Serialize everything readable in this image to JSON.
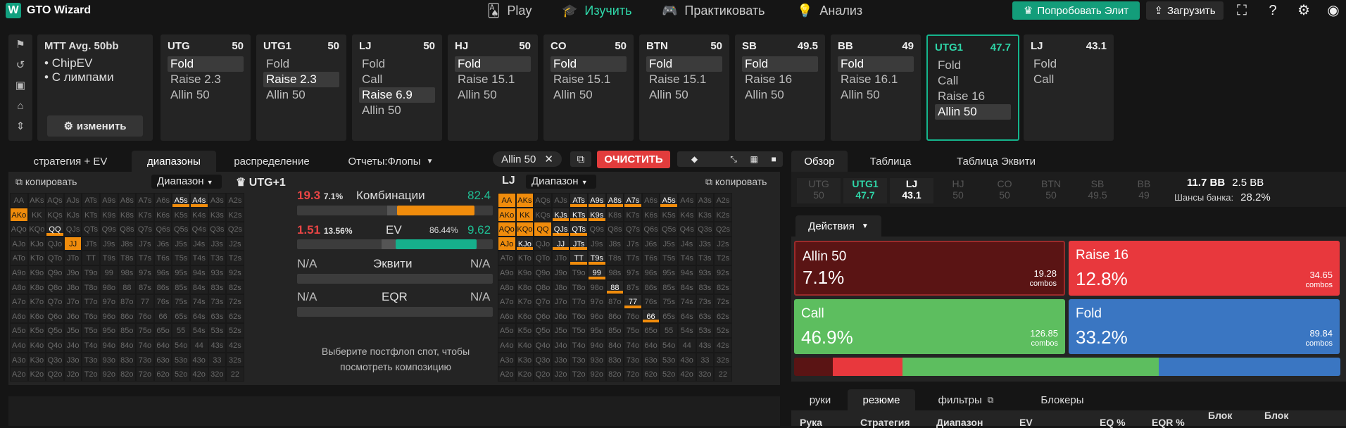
{
  "app": {
    "name": "GTO Wizard",
    "logo": "W"
  },
  "nav": [
    {
      "label": "Play",
      "icon": "cards-icon"
    },
    {
      "label": "Изучить",
      "icon": "graduation-icon"
    },
    {
      "label": "Практиковать",
      "icon": "gamepad-icon"
    },
    {
      "label": "Анализ",
      "icon": "bulb-icon"
    }
  ],
  "top": {
    "elite": "Попробовать Элит",
    "upload": "Загрузить"
  },
  "info": {
    "title": "MTT  Avg. 50bb",
    "line1": "ChipEV",
    "line2": "С лимпами",
    "edit": "изменить"
  },
  "positions": [
    {
      "pos": "UTG",
      "stack": "50",
      "actions": [
        "Fold",
        "Raise 2.3",
        "Allin 50"
      ],
      "sel": 0
    },
    {
      "pos": "UTG1",
      "stack": "50",
      "actions": [
        "Fold",
        "Raise 2.3",
        "Allin 50"
      ],
      "sel": 1
    },
    {
      "pos": "LJ",
      "stack": "50",
      "actions": [
        "Fold",
        "Call",
        "Raise 6.9",
        "Allin 50"
      ],
      "sel": 2
    },
    {
      "pos": "HJ",
      "stack": "50",
      "actions": [
        "Fold",
        "Raise 15.1",
        "Allin 50"
      ],
      "sel": 0
    },
    {
      "pos": "CO",
      "stack": "50",
      "actions": [
        "Fold",
        "Raise 15.1",
        "Allin 50"
      ],
      "sel": 0
    },
    {
      "pos": "BTN",
      "stack": "50",
      "actions": [
        "Fold",
        "Raise 15.1",
        "Allin 50"
      ],
      "sel": 0
    },
    {
      "pos": "SB",
      "stack": "49.5",
      "actions": [
        "Fold",
        "Raise 16",
        "Allin 50"
      ],
      "sel": 0
    },
    {
      "pos": "BB",
      "stack": "49",
      "actions": [
        "Fold",
        "Raise 16.1",
        "Allin 50"
      ],
      "sel": 0
    },
    {
      "pos": "UTG1",
      "stack": "47.7",
      "actions": [
        "Fold",
        "Call",
        "Raise 16",
        "Allin 50"
      ],
      "sel": 3
    },
    {
      "pos": "LJ",
      "stack": "43.1",
      "actions": [
        "Fold",
        "Call"
      ],
      "sel": -1
    }
  ],
  "tabs": [
    "стратегия + EV",
    "диапазоны",
    "распределение",
    "Отчеты:Флопы"
  ],
  "controls": {
    "chip": "Allin 50",
    "clear": "ОЧИСТИТЬ"
  },
  "left": {
    "copy": "копировать",
    "range": "Диапазон",
    "player": "UTG+1"
  },
  "mid": {
    "combos_l": "19.3",
    "combos_lp": "7.1%",
    "combos_t": "Комбинации",
    "combos_r": "82.4",
    "ev_l": "1.51",
    "ev_lp": "13.56%",
    "ev_t": "EV",
    "ev_rp": "86.44%",
    "ev_r": "9.62",
    "eq_l": "N/A",
    "eq_t": "Эквити",
    "eq_r": "N/A",
    "eqr_l": "N/A",
    "eqr_t": "EQR",
    "eqr_r": "N/A",
    "hint": "Выберите постфлоп спот, чтобы посмотреть композицию"
  },
  "right": {
    "player": "LJ",
    "range": "Диапазон",
    "copy": "копировать"
  },
  "hands": [
    [
      "AA",
      "AKs",
      "AQs",
      "AJs",
      "ATs",
      "A9s",
      "A8s",
      "A7s",
      "A6s",
      "A5s",
      "A4s",
      "A3s",
      "A2s"
    ],
    [
      "AKo",
      "KK",
      "KQs",
      "KJs",
      "KTs",
      "K9s",
      "K8s",
      "K7s",
      "K6s",
      "K5s",
      "K4s",
      "K3s",
      "K2s"
    ],
    [
      "AQo",
      "KQo",
      "QQ",
      "QJs",
      "QTs",
      "Q9s",
      "Q8s",
      "Q7s",
      "Q6s",
      "Q5s",
      "Q4s",
      "Q3s",
      "Q2s"
    ],
    [
      "AJo",
      "KJo",
      "QJo",
      "JJ",
      "JTs",
      "J9s",
      "J8s",
      "J7s",
      "J6s",
      "J5s",
      "J4s",
      "J3s",
      "J2s"
    ],
    [
      "ATo",
      "KTo",
      "QTo",
      "JTo",
      "TT",
      "T9s",
      "T8s",
      "T7s",
      "T6s",
      "T5s",
      "T4s",
      "T3s",
      "T2s"
    ],
    [
      "A9o",
      "K9o",
      "Q9o",
      "J9o",
      "T9o",
      "99",
      "98s",
      "97s",
      "96s",
      "95s",
      "94s",
      "93s",
      "92s"
    ],
    [
      "A8o",
      "K8o",
      "Q8o",
      "J8o",
      "T8o",
      "98o",
      "88",
      "87s",
      "86s",
      "85s",
      "84s",
      "83s",
      "82s"
    ],
    [
      "A7o",
      "K7o",
      "Q7o",
      "J7o",
      "T7o",
      "97o",
      "87o",
      "77",
      "76s",
      "75s",
      "74s",
      "73s",
      "72s"
    ],
    [
      "A6o",
      "K6o",
      "Q6o",
      "J6o",
      "T6o",
      "96o",
      "86o",
      "76o",
      "66",
      "65s",
      "64s",
      "63s",
      "62s"
    ],
    [
      "A5o",
      "K5o",
      "Q5o",
      "J5o",
      "T5o",
      "95o",
      "85o",
      "75o",
      "65o",
      "55",
      "54s",
      "53s",
      "52s"
    ],
    [
      "A4o",
      "K4o",
      "Q4o",
      "J4o",
      "T4o",
      "94o",
      "84o",
      "74o",
      "64o",
      "54o",
      "44",
      "43s",
      "42s"
    ],
    [
      "A3o",
      "K3o",
      "Q3o",
      "J3o",
      "T3o",
      "93o",
      "83o",
      "73o",
      "63o",
      "53o",
      "43o",
      "33",
      "32s"
    ],
    [
      "A2o",
      "K2o",
      "Q2o",
      "J2o",
      "T2o",
      "92o",
      "82o",
      "72o",
      "62o",
      "52o",
      "42o",
      "32o",
      "22"
    ]
  ],
  "leftHighlights": {
    "full": [
      "AKo",
      "JJ"
    ],
    "partial": [
      "A5s",
      "A4s",
      "QQ"
    ]
  },
  "rightHighlights": {
    "full": [
      "AA",
      "AKs",
      "AKo",
      "KK",
      "AQo",
      "KQo",
      "QQ",
      "AJo"
    ],
    "partial": [
      "KJs",
      "QJs",
      "KTs",
      "QTs",
      "K9s",
      "ATs",
      "A9s",
      "A8s",
      "A7s",
      "A5s",
      "JJ",
      "JTs",
      "TT",
      "T9s",
      "99",
      "88",
      "77",
      "66",
      "KJo"
    ]
  },
  "rtabs": [
    "Обзор",
    "Таблица",
    "Таблица Эквити"
  ],
  "mini": [
    {
      "pos": "UTG",
      "stack": "50"
    },
    {
      "pos": "UTG1",
      "stack": "47.7"
    },
    {
      "pos": "LJ",
      "stack": "43.1"
    },
    {
      "pos": "HJ",
      "stack": "50"
    },
    {
      "pos": "CO",
      "stack": "50"
    },
    {
      "pos": "BTN",
      "stack": "50"
    },
    {
      "pos": "SB",
      "stack": "49.5"
    },
    {
      "pos": "BB",
      "stack": "49"
    }
  ],
  "pot": {
    "a": "11.7 BB",
    "b": "2.5 BB",
    "label": "Шансы банка:",
    "val": "28.2%"
  },
  "actions_label": "Действия",
  "boxes": [
    {
      "name": "Allin 50",
      "pct": "7.1%",
      "combos": "19.28",
      "unit": "combos",
      "color": "#5a1414"
    },
    {
      "name": "Raise 16",
      "pct": "12.8%",
      "combos": "34.65",
      "unit": "combos",
      "color": "#e8383d"
    },
    {
      "name": "Call",
      "pct": "46.9%",
      "combos": "126.85",
      "unit": "combos",
      "color": "#5dbe5f"
    },
    {
      "name": "Fold",
      "pct": "33.2%",
      "combos": "89.84",
      "unit": "combos",
      "color": "#3a76c2"
    }
  ],
  "dist": [
    0.071,
    0.128,
    0.469,
    0.332
  ],
  "btabs": [
    "руки",
    "резюме",
    "фильтры",
    "Блокеры"
  ],
  "thead": [
    "Рука",
    "Стратегия",
    "Диапазон",
    "EV",
    "EQ %",
    "EQR %",
    "Блок",
    "Блок"
  ]
}
